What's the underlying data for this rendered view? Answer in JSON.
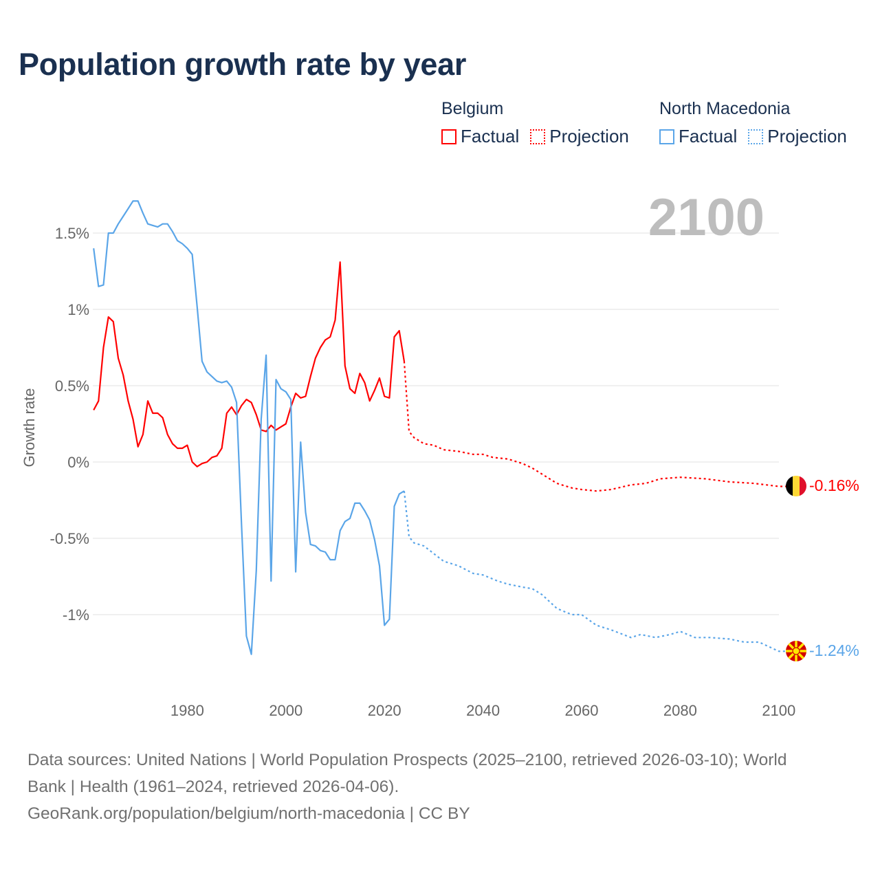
{
  "title": "Population growth rate by year",
  "legend": [
    {
      "group": "Belgium",
      "factual": "Factual",
      "projection": "Projection",
      "color": "#ff0000"
    },
    {
      "group": "North Macedonia",
      "factual": "Factual",
      "projection": "Projection",
      "color": "#5aa5e8"
    }
  ],
  "footer": {
    "line1": "Data sources: United Nations | World Population Prospects (2025–2100, retrieved 2026-03-10); World",
    "line2": "Bank | Health (1961–2024, retrieved 2026-04-06).",
    "line3": "GeoRank.org/population/belgium/north-macedonia | CC BY"
  },
  "chart_data": {
    "type": "line",
    "title": "Population growth rate by year",
    "xlabel": "",
    "ylabel": "Growth rate",
    "current_year_label": "2100",
    "xlim": [
      1960,
      2100
    ],
    "ylim": [
      -1.4,
      1.9
    ],
    "x_ticks": [
      1980,
      2000,
      2020,
      2040,
      2060,
      2080,
      2100
    ],
    "y_ticks": [
      {
        "value": 1.5,
        "label": "1.5%"
      },
      {
        "value": 1,
        "label": "1%"
      },
      {
        "value": 0.5,
        "label": "0.5%"
      },
      {
        "value": 0,
        "label": "0%"
      },
      {
        "value": -0.5,
        "label": "-0.5%"
      },
      {
        "value": -1,
        "label": "-1%"
      }
    ],
    "grid": true,
    "legend_position": "top-right",
    "series": [
      {
        "name": "Belgium",
        "color": "#ff0000",
        "end_label": "-0.16%",
        "flag": "belgium-flag",
        "factual": {
          "x": [
            1961,
            1962,
            1963,
            1964,
            1965,
            1966,
            1967,
            1968,
            1969,
            1970,
            1971,
            1972,
            1973,
            1974,
            1975,
            1976,
            1977,
            1978,
            1979,
            1980,
            1981,
            1982,
            1983,
            1984,
            1985,
            1986,
            1987,
            1988,
            1989,
            1990,
            1991,
            1992,
            1993,
            1994,
            1995,
            1996,
            1997,
            1998,
            1999,
            2000,
            2001,
            2002,
            2003,
            2004,
            2005,
            2006,
            2007,
            2008,
            2009,
            2010,
            2011,
            2012,
            2013,
            2014,
            2015,
            2016,
            2017,
            2018,
            2019,
            2020,
            2021,
            2022,
            2023,
            2024
          ],
          "y": [
            0.34,
            0.4,
            0.75,
            0.95,
            0.92,
            0.68,
            0.57,
            0.4,
            0.28,
            0.1,
            0.18,
            0.4,
            0.32,
            0.32,
            0.29,
            0.18,
            0.12,
            0.09,
            0.09,
            0.11,
            0.0,
            -0.03,
            -0.01,
            0.0,
            0.03,
            0.04,
            0.09,
            0.32,
            0.36,
            0.31,
            0.37,
            0.41,
            0.39,
            0.31,
            0.21,
            0.2,
            0.24,
            0.21,
            0.23,
            0.25,
            0.36,
            0.45,
            0.42,
            0.43,
            0.56,
            0.68,
            0.75,
            0.8,
            0.82,
            0.93,
            1.31,
            0.63,
            0.48,
            0.45,
            0.58,
            0.52,
            0.4,
            0.47,
            0.55,
            0.43,
            0.42,
            0.82,
            0.86,
            0.66
          ]
        },
        "projection": {
          "x": [
            2025,
            2026,
            2028,
            2030,
            2032,
            2035,
            2038,
            2040,
            2042,
            2045,
            2048,
            2050,
            2053,
            2055,
            2058,
            2060,
            2063,
            2066,
            2070,
            2073,
            2076,
            2080,
            2085,
            2090,
            2095,
            2100
          ],
          "y": [
            0.2,
            0.16,
            0.12,
            0.11,
            0.08,
            0.07,
            0.05,
            0.05,
            0.03,
            0.02,
            -0.01,
            -0.04,
            -0.1,
            -0.14,
            -0.17,
            -0.18,
            -0.19,
            -0.18,
            -0.15,
            -0.14,
            -0.11,
            -0.1,
            -0.11,
            -0.13,
            -0.14,
            -0.16
          ]
        }
      },
      {
        "name": "North Macedonia",
        "color": "#5aa5e8",
        "end_label": "-1.24%",
        "flag": "north-macedonia-flag",
        "factual": {
          "x": [
            1961,
            1962,
            1963,
            1964,
            1965,
            1966,
            1967,
            1968,
            1969,
            1970,
            1971,
            1972,
            1973,
            1974,
            1975,
            1976,
            1977,
            1978,
            1979,
            1980,
            1981,
            1982,
            1983,
            1984,
            1985,
            1986,
            1987,
            1988,
            1989,
            1990,
            1991,
            1992,
            1993,
            1994,
            1995,
            1996,
            1997,
            1998,
            1999,
            2000,
            2001,
            2002,
            2003,
            2004,
            2005,
            2006,
            2007,
            2008,
            2009,
            2010,
            2011,
            2012,
            2013,
            2014,
            2015,
            2016,
            2017,
            2018,
            2019,
            2020,
            2021,
            2022,
            2023,
            2024
          ],
          "y": [
            1.4,
            1.15,
            1.16,
            1.5,
            1.5,
            1.56,
            1.61,
            1.66,
            1.71,
            1.71,
            1.63,
            1.56,
            1.55,
            1.54,
            1.56,
            1.56,
            1.51,
            1.45,
            1.43,
            1.4,
            1.36,
            1.02,
            0.66,
            0.59,
            0.56,
            0.53,
            0.52,
            0.53,
            0.49,
            0.39,
            -0.41,
            -1.14,
            -1.26,
            -0.71,
            0.28,
            0.7,
            -0.78,
            0.54,
            0.48,
            0.46,
            0.41,
            -0.72,
            0.13,
            -0.33,
            -0.54,
            -0.55,
            -0.58,
            -0.59,
            -0.64,
            -0.64,
            -0.45,
            -0.39,
            -0.37,
            -0.27,
            -0.27,
            -0.32,
            -0.38,
            -0.51,
            -0.68,
            -1.07,
            -1.03,
            -0.29,
            -0.21,
            -0.19
          ]
        },
        "projection": {
          "x": [
            2025,
            2026,
            2028,
            2030,
            2032,
            2035,
            2038,
            2040,
            2043,
            2045,
            2048,
            2050,
            2052,
            2055,
            2058,
            2060,
            2063,
            2066,
            2070,
            2072,
            2075,
            2078,
            2080,
            2083,
            2086,
            2090,
            2093,
            2096,
            2100
          ],
          "y": [
            -0.49,
            -0.53,
            -0.55,
            -0.6,
            -0.65,
            -0.68,
            -0.73,
            -0.74,
            -0.78,
            -0.8,
            -0.82,
            -0.83,
            -0.87,
            -0.96,
            -1.0,
            -1.0,
            -1.07,
            -1.1,
            -1.15,
            -1.13,
            -1.15,
            -1.13,
            -1.11,
            -1.15,
            -1.15,
            -1.16,
            -1.18,
            -1.18,
            -1.24
          ]
        }
      }
    ]
  }
}
